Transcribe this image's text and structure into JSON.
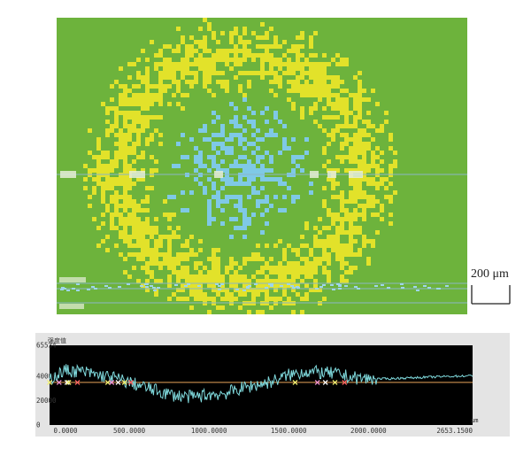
{
  "scale_bar": {
    "label": "200 μm"
  },
  "profile": {
    "title": "强度值",
    "x_unit": "μm",
    "x_ticks": [
      "0.0000",
      "500.0000",
      "1000.0000",
      "1500.0000",
      "2000.0000",
      "2653.1500"
    ],
    "y_ticks": [
      "65534",
      "40000",
      "20000",
      "0"
    ]
  },
  "chart_data": {
    "type": "line",
    "xlabel": "μm",
    "ylabel": "强度值",
    "xlim": [
      0,
      2653.15
    ],
    "ylim": [
      0,
      65534
    ],
    "x": [
      0,
      100,
      200,
      300,
      400,
      500,
      600,
      700,
      800,
      900,
      1000,
      1100,
      1200,
      1300,
      1400,
      1500,
      1600,
      1700,
      1800,
      1900,
      2000,
      2100,
      2200,
      2300,
      2400,
      2500,
      2653.15
    ],
    "y": [
      38000,
      45000,
      44000,
      41000,
      39000,
      35000,
      31000,
      27000,
      24000,
      23000,
      25000,
      26000,
      30000,
      33000,
      36000,
      41000,
      44000,
      43000,
      42000,
      39000,
      38000,
      38000,
      38500,
      39000,
      39500,
      40000,
      40500
    ],
    "reference_level": 35000,
    "line_color": "#7fd9dc",
    "reference_color": "#e8a35a",
    "background": "#000000"
  },
  "colors": {
    "green": "#6db33c",
    "yellow": "#e2e22a",
    "blue": "#7fc9e6",
    "plot_bg": "#000000"
  }
}
